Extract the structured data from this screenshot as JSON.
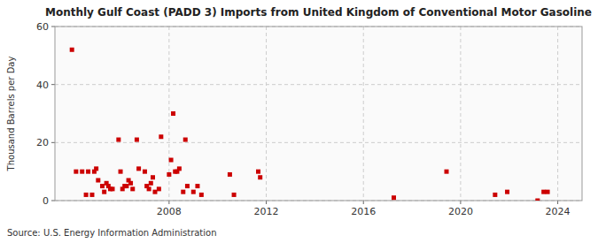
{
  "chart_data": {
    "type": "scatter",
    "title": "Monthly Gulf Coast (PADD 3) Imports from United Kingdom of Conventional Motor Gasoline",
    "y_label": "Thousand Barrels per Day",
    "annotations": [
      "Source: U.S. Energy Information Administration"
    ],
    "x": [
      2004.0,
      2004.17,
      2004.42,
      2004.58,
      2004.67,
      2004.83,
      2004.92,
      2005.0,
      2005.08,
      2005.25,
      2005.33,
      2005.42,
      2005.5,
      2005.58,
      2005.67,
      2005.92,
      2006.0,
      2006.08,
      2006.17,
      2006.25,
      2006.33,
      2006.42,
      2006.5,
      2006.67,
      2006.75,
      2007.0,
      2007.08,
      2007.17,
      2007.25,
      2007.33,
      2007.42,
      2007.58,
      2007.67,
      2008.0,
      2008.08,
      2008.17,
      2008.25,
      2008.33,
      2008.42,
      2008.58,
      2008.67,
      2008.75,
      2009.0,
      2009.17,
      2009.33,
      2010.5,
      2010.67,
      2011.67,
      2011.75,
      2017.25,
      2019.42,
      2021.42,
      2021.92,
      2023.17,
      2023.42,
      2023.58
    ],
    "values": [
      52,
      10,
      10,
      2,
      10,
      2,
      10,
      11,
      7,
      5,
      3,
      6,
      5,
      4,
      4,
      21,
      10,
      4,
      5,
      5,
      7,
      6,
      4,
      21,
      11,
      10,
      5,
      4,
      6,
      8,
      3,
      4,
      22,
      9,
      14,
      30,
      10,
      10,
      11,
      3,
      21,
      5,
      3,
      5,
      2,
      9,
      2,
      10,
      8,
      1,
      10,
      2,
      3,
      0,
      3,
      3
    ],
    "color": "#cc0000",
    "marker": "square",
    "xlim": [
      2003.3,
      2025.0
    ],
    "ylim": [
      0,
      60
    ],
    "xticks": [
      2008,
      2012,
      2016,
      2020,
      2024
    ],
    "yticks": [
      0,
      20,
      40,
      60
    ],
    "grid": true
  }
}
